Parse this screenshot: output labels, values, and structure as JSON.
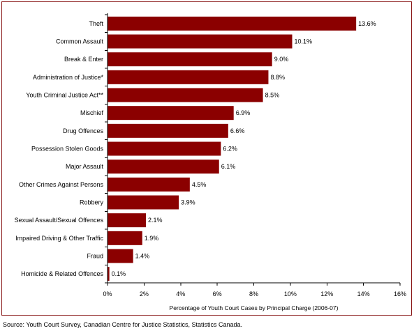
{
  "chart_data": {
    "type": "bar",
    "orientation": "horizontal",
    "categories": [
      "Theft",
      "Common Assault",
      "Break & Enter",
      "Administration of Justice*",
      "Youth Criminal Justice Act**",
      "Mischief",
      "Drug Offences",
      "Possession Stolen Goods",
      "Major Assault",
      "Other Crimes Against Persons",
      "Robbery",
      "Sexual Assault/Sexual Offences",
      "Impaired Driving & Other Traffic",
      "Fraud",
      "Homicide & Related Offences"
    ],
    "values": [
      13.6,
      10.1,
      9.0,
      8.8,
      8.5,
      6.9,
      6.6,
      6.2,
      6.1,
      4.5,
      3.9,
      2.1,
      1.9,
      1.4,
      0.1
    ],
    "value_labels": [
      "13.6%",
      "10.1%",
      "9.0%",
      "8.8%",
      "8.5%",
      "6.9%",
      "6.6%",
      "6.2%",
      "6.1%",
      "4.5%",
      "3.9%",
      "2.1%",
      "1.9%",
      "1.4%",
      "0.1%"
    ],
    "xlim": [
      0,
      16
    ],
    "xticks": [
      "0%",
      "2%",
      "4%",
      "6%",
      "8%",
      "10%",
      "12%",
      "14%",
      "16%"
    ],
    "xlabel": "Percentage of Youth Court Cases by Principal Charge (2006-07)",
    "ylabel": "",
    "title": "",
    "grid": false,
    "legend": "none",
    "bar_color": "#8b0000",
    "frame_color": "#8b1a1a"
  },
  "source": "Source:  Youth Court Survey, Canadian Centre for Justice Statistics, Statistics Canada."
}
